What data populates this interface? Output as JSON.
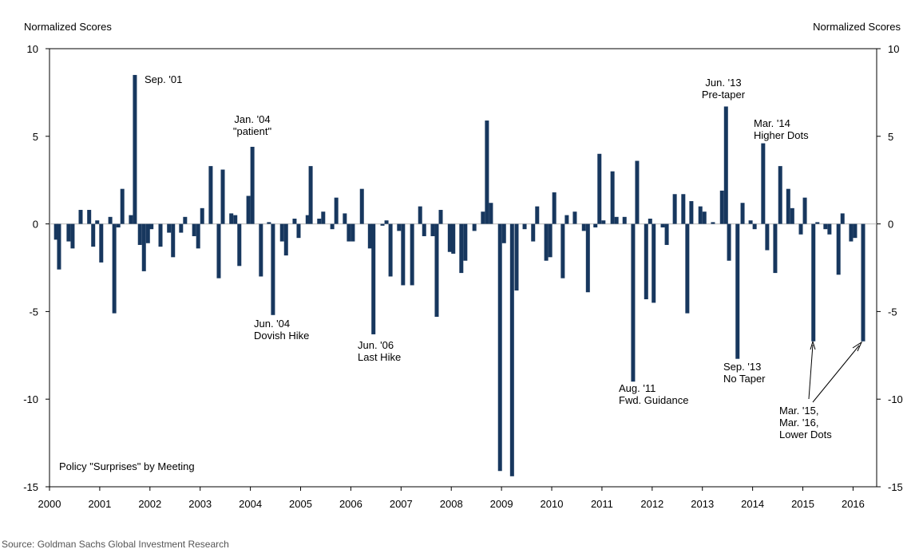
{
  "chart_data": {
    "type": "bar",
    "y_label": "Normalized Scores",
    "y2_label": "Normalized Scores",
    "subtitle": "Policy \"Surprises\" by Meeting",
    "source": "Source: Goldman Sachs Global Investment Research",
    "color": "#17375e",
    "x": [
      2000.13,
      2000.19,
      2000.38,
      2000.46,
      2000.62,
      2000.79,
      2000.87,
      2000.95,
      2001.03,
      2001.21,
      2001.29,
      2001.37,
      2001.45,
      2001.62,
      2001.7,
      2001.8,
      2001.88,
      2001.96,
      2002.03,
      2002.21,
      2002.38,
      2002.46,
      2002.62,
      2002.7,
      2002.88,
      2002.96,
      2003.04,
      2003.21,
      2003.37,
      2003.45,
      2003.62,
      2003.7,
      2003.78,
      2003.96,
      2004.04,
      2004.21,
      2004.37,
      2004.45,
      2004.63,
      2004.71,
      2004.88,
      2004.96,
      2005.14,
      2005.2,
      2005.37,
      2005.45,
      2005.63,
      2005.71,
      2005.88,
      2005.96,
      2006.04,
      2006.22,
      2006.38,
      2006.45,
      2006.63,
      2006.71,
      2006.79,
      2006.96,
      2007.04,
      2007.22,
      2007.38,
      2007.46,
      2007.63,
      2007.71,
      2007.79,
      2007.97,
      2008.04,
      2008.2,
      2008.28,
      2008.46,
      2008.63,
      2008.71,
      2008.79,
      2008.97,
      2009.05,
      2009.21,
      2009.3,
      2009.46,
      2009.63,
      2009.71,
      2009.89,
      2009.97,
      2010.05,
      2010.22,
      2010.3,
      2010.46,
      2010.64,
      2010.72,
      2010.87,
      2010.95,
      2011.03,
      2011.21,
      2011.29,
      2011.45,
      2011.62,
      2011.7,
      2011.88,
      2011.96,
      2012.03,
      2012.21,
      2012.29,
      2012.45,
      2012.62,
      2012.7,
      2012.78,
      2012.96,
      2013.04,
      2013.21,
      2013.39,
      2013.47,
      2013.53,
      2013.7,
      2013.8,
      2013.96,
      2014.04,
      2014.21,
      2014.29,
      2014.45,
      2014.55,
      2014.71,
      2014.79,
      2014.96,
      2015.04,
      2015.21,
      2015.29,
      2015.45,
      2015.53,
      2015.71,
      2015.79,
      2015.96,
      2016.04,
      2016.2
    ],
    "values": [
      -0.9,
      -2.6,
      -1.0,
      -1.4,
      0.8,
      0.8,
      -1.3,
      0.2,
      -2.2,
      0.4,
      -5.1,
      -0.2,
      2.0,
      0.5,
      8.5,
      -1.2,
      -2.7,
      -1.1,
      -0.3,
      -1.3,
      -0.5,
      -1.9,
      -0.5,
      0.4,
      -0.7,
      -1.4,
      0.9,
      3.3,
      -3.1,
      3.1,
      0.6,
      0.5,
      -2.4,
      1.6,
      4.4,
      -3.0,
      0.1,
      -5.2,
      -1.0,
      -1.8,
      0.3,
      -0.8,
      0.5,
      3.3,
      0.3,
      0.7,
      -0.3,
      1.5,
      0.6,
      -1.0,
      -1.0,
      2.0,
      -1.4,
      -6.3,
      -0.1,
      0.2,
      -3.0,
      -0.4,
      -3.5,
      -3.5,
      1.0,
      -0.7,
      -0.7,
      -5.3,
      0.8,
      -1.6,
      -1.7,
      -2.8,
      -2.1,
      -0.4,
      0.7,
      5.9,
      1.2,
      -14.1,
      -1.1,
      -14.4,
      -3.8,
      -0.3,
      -1.0,
      1.0,
      -2.1,
      -1.9,
      1.8,
      -3.1,
      0.5,
      0.7,
      -0.4,
      -3.9,
      -0.2,
      4.0,
      0.2,
      3.0,
      0.4,
      0.4,
      -9.0,
      3.6,
      -4.3,
      0.3,
      -4.5,
      -0.2,
      -1.2,
      1.7,
      1.7,
      -5.1,
      1.3,
      1.0,
      0.7,
      0.1,
      1.9,
      6.7,
      -2.1,
      -7.7,
      1.2,
      0.2,
      -0.3,
      4.6,
      -1.5,
      -2.8,
      3.3,
      2.0,
      0.9,
      -0.6,
      1.5,
      -6.7,
      0.1,
      -0.3,
      -0.6,
      -2.9,
      0.6,
      -1.0,
      -0.8,
      -6.7
    ],
    "xlim": [
      2000,
      2016.47
    ],
    "xticks": [
      2000,
      2001,
      2002,
      2003,
      2004,
      2005,
      2006,
      2007,
      2008,
      2009,
      2010,
      2011,
      2012,
      2013,
      2014,
      2015,
      2016
    ],
    "ylim": [
      -15,
      10
    ],
    "yticks": [
      -15,
      -10,
      -5,
      0,
      5,
      10
    ],
    "y2lim": [
      -15,
      10
    ],
    "y2ticks": [
      -15,
      -10,
      -5,
      0,
      5,
      10
    ],
    "annotations": [
      [
        "Sep. '01"
      ],
      [
        "Jan. '04",
        "\"patient\""
      ],
      [
        "Jun. '04",
        "Dovish Hike"
      ],
      [
        "Jun. '06",
        "Last Hike"
      ],
      [
        "Aug. '11",
        "Fwd. Guidance"
      ],
      [
        "Jun. '13",
        "Pre-taper"
      ],
      [
        "Mar. '14",
        "Higher Dots"
      ],
      [
        "Sep. '13",
        "No Taper"
      ],
      [
        "Mar. '15,",
        "Mar. '16,",
        "Lower Dots"
      ]
    ]
  }
}
